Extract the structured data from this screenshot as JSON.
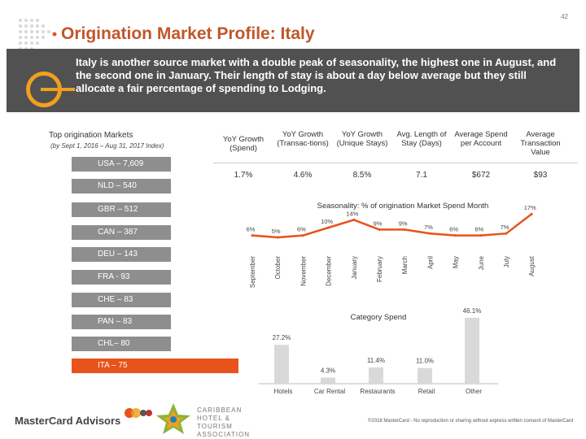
{
  "page": {
    "number": "42",
    "title": "Origination Market Profile: Italy"
  },
  "banner": {
    "text": "Italy is another source market with a double peak of seasonality, the highest one in August, and the second one in January. Their length of stay is about a day below average but they still allocate a fair percentage of spending to Lodging."
  },
  "markets": {
    "heading": "Top origination Markets",
    "subheading": "(by Sept 1, 2016 – Aug 31, 2017 Index)",
    "items": [
      {
        "label": "USA – 7,609"
      },
      {
        "label": "NLD – 540"
      },
      {
        "label": "GBR – 512"
      },
      {
        "label": "CAN – 387"
      },
      {
        "label": "DEU – 143"
      },
      {
        "label": "FRA - 93"
      },
      {
        "label": "CHE – 83"
      },
      {
        "label": "PAN – 83"
      },
      {
        "label": "CHL– 80"
      },
      {
        "label": "ITA – 75"
      }
    ]
  },
  "kpis": [
    {
      "label": "YoY Growth (Spend)",
      "value": "1.7%"
    },
    {
      "label": "YoY Growth (Transac-tions)",
      "value": "4.6%"
    },
    {
      "label": "YoY Growth (Unique Stays)",
      "value": "8.5%"
    },
    {
      "label": "Avg. Length of Stay (Days)",
      "value": "7.1"
    },
    {
      "label": "Average Spend per Account",
      "value": "$672"
    },
    {
      "label": "Average Transaction Value",
      "value": "$93"
    }
  ],
  "chart_data": [
    {
      "type": "line",
      "title": "Seasonality: % of origination Market Spend Month",
      "categories": [
        "September",
        "October",
        "November",
        "December",
        "January",
        "February",
        "March",
        "April",
        "May",
        "June",
        "July",
        "August"
      ],
      "values": [
        6,
        5,
        6,
        10,
        14,
        9,
        9,
        7,
        6,
        6,
        7,
        17
      ],
      "labels": [
        "6%",
        "5%",
        "6%",
        "10%",
        "14%",
        "9%",
        "9%",
        "7%",
        "6%",
        "6%",
        "7%",
        "17%"
      ],
      "color": "#e8521b"
    },
    {
      "type": "bar",
      "title": "Category Spend",
      "categories": [
        "Hotels",
        "Car Rental",
        "Restaurants",
        "Retail",
        "Other"
      ],
      "values": [
        27.2,
        4.3,
        11.4,
        11.0,
        46.1
      ],
      "labels": [
        "27.2%",
        "4.3%",
        "11.4%",
        "11.0%",
        "46.1%"
      ],
      "ylim": [
        0,
        50
      ],
      "color": "#d9d9d9"
    }
  ],
  "footer": {
    "brand": "MasterCard Advisors",
    "partner": "CARIBBEAN HOTEL & TOURISM ASSOCIATION",
    "copyright": "©2018 MasterCard - No reproduction or sharing without express written consent of MasterCard"
  },
  "colors": {
    "accent": "#c0572a",
    "highlight": "#e8521b",
    "banner": "#515151",
    "bar": "#8e8e8e"
  }
}
